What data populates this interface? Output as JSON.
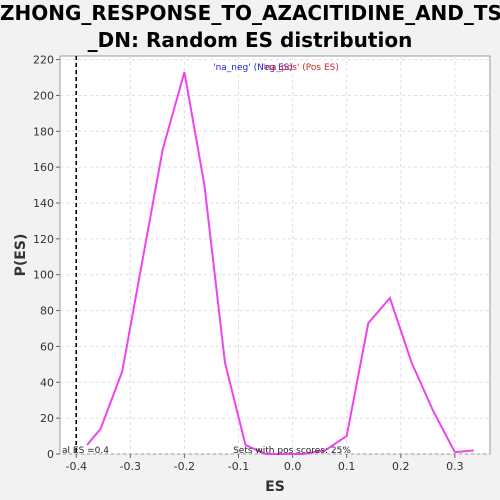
{
  "chart_data": {
    "type": "line",
    "title_line1": "ZHONG_RESPONSE_TO_AZACITIDINE_AND_TSA",
    "title_line2": "_DN: Random ES distribution",
    "xlabel": "ES",
    "ylabel": "P(ES)",
    "xlim": [
      -0.43,
      0.365
    ],
    "ylim": [
      0,
      222
    ],
    "x_ticks": [
      -0.4,
      -0.3,
      -0.2,
      -0.1,
      0.0,
      0.1,
      0.2,
      0.3
    ],
    "x_tick_labels": [
      "-0.4",
      "-0.3",
      "-0.2",
      "-0.1",
      "0.0",
      "0.1",
      "0.2",
      "0.3"
    ],
    "y_ticks": [
      0,
      20,
      40,
      60,
      80,
      100,
      120,
      140,
      160,
      180,
      200,
      220
    ],
    "y_tick_labels": [
      "0",
      "20",
      "40",
      "60",
      "80",
      "100",
      "120",
      "140",
      "160",
      "180",
      "200",
      "220"
    ],
    "grid": true,
    "series": [
      {
        "color": "#ee44ee",
        "x": [
          -0.38,
          -0.355,
          -0.315,
          -0.28,
          -0.24,
          -0.2,
          -0.163,
          -0.125,
          -0.087,
          -0.05,
          -0.015,
          0.02,
          0.06,
          0.1,
          0.14,
          0.18,
          0.22,
          0.26,
          0.3,
          0.335
        ],
        "y": [
          5,
          14,
          46,
          104,
          170,
          213,
          150,
          51,
          5,
          0,
          0,
          0,
          2,
          10,
          73,
          87,
          51,
          24,
          1,
          2
        ]
      }
    ],
    "vline": {
      "x": -0.4,
      "style": "dashed",
      "color": "#000000"
    },
    "legend": {
      "neg_label": "'na_neg' (Neg ES)",
      "pos_label": "'na_pos' (Pos ES)",
      "neg_color": "#2222cc",
      "pos_color": "#dd2222"
    },
    "annotations": {
      "left_note": "al ES =0.4",
      "bottom_note": "Sets with pos scores: 25%"
    }
  }
}
